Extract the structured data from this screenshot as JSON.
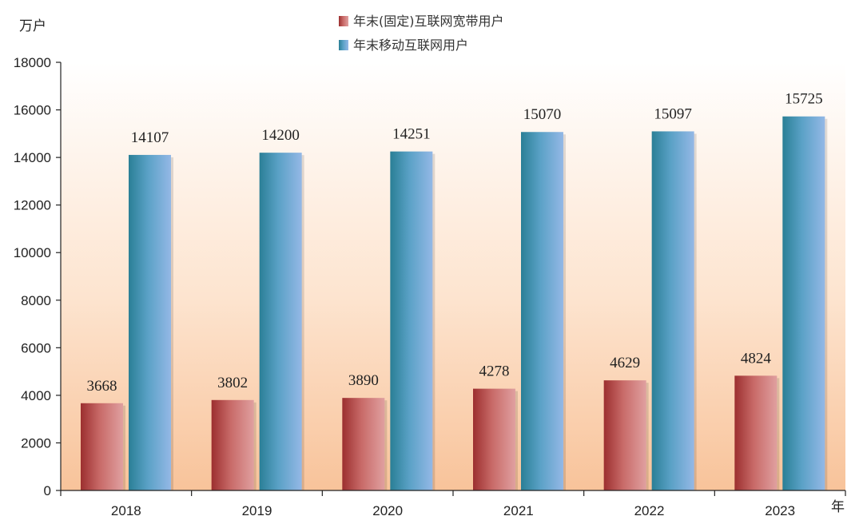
{
  "chart_data": {
    "type": "bar",
    "ylabel": "万户",
    "xlabel": "年",
    "categories": [
      "2018",
      "2019",
      "2020",
      "2021",
      "2022",
      "2023"
    ],
    "series": [
      {
        "name": "年末(固定)互联网宽带用户",
        "values": [
          3668,
          3802,
          3890,
          4278,
          4629,
          4824
        ]
      },
      {
        "name": "年末移动互联网用户",
        "values": [
          14107,
          14200,
          14251,
          15070,
          15097,
          15725
        ]
      }
    ],
    "ylim": [
      0,
      18000
    ],
    "yticks": [
      0,
      2000,
      4000,
      6000,
      8000,
      10000,
      12000,
      14000,
      16000,
      18000
    ],
    "legend_position": "top-center",
    "grid": false
  },
  "colors": {
    "series_0": "#c0605e",
    "series_1": "#5a9ec8",
    "background_top": "#ffffff",
    "background_bottom": "#f8c9a0"
  }
}
